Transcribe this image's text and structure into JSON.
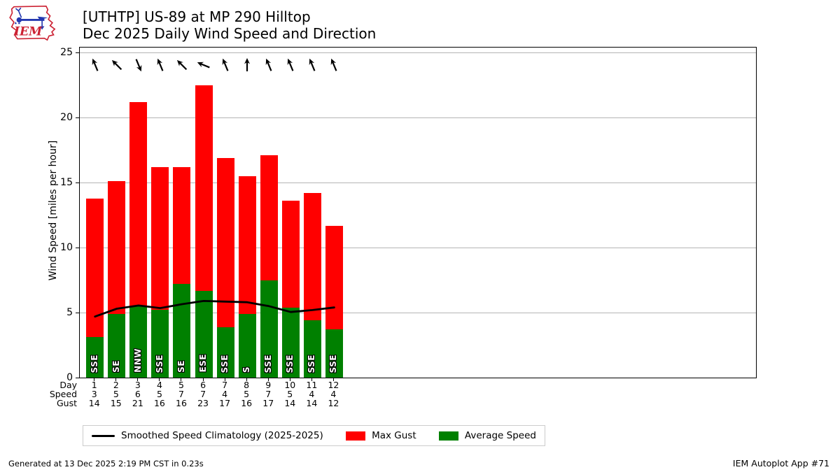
{
  "header": {
    "title_line1": "[UTHTP] US-89 at MP 290 Hilltop",
    "title_line2": "Dec 2025 Daily Wind Speed and Direction",
    "logo_text": "IEM"
  },
  "chart_data": {
    "type": "bar",
    "title": "[UTHTP] US-89 at MP 290 Hilltop — Dec 2025 Daily Wind Speed and Direction",
    "ylabel": "Wind Speed [miles per hour]",
    "ylim": [
      0,
      25.4
    ],
    "yticks": [
      0,
      5,
      10,
      15,
      20,
      25
    ],
    "grid": true,
    "x_axis_day_span": [
      0.3,
      31.4
    ],
    "x_days": [
      1,
      2,
      3,
      4,
      5,
      6,
      7,
      8,
      9,
      10,
      11,
      12
    ],
    "series": [
      {
        "name": "Max Gust",
        "type": "bar",
        "color": "#ff0000",
        "values": [
          13.8,
          15.1,
          21.2,
          16.2,
          16.2,
          22.5,
          16.9,
          15.5,
          17.1,
          13.6,
          14.2,
          11.7
        ]
      },
      {
        "name": "Average Speed",
        "type": "bar",
        "color": "#008000",
        "values": [
          3.1,
          4.9,
          5.5,
          5.2,
          7.2,
          6.7,
          3.9,
          4.9,
          7.5,
          5.4,
          4.4,
          3.7
        ]
      },
      {
        "name": "Smoothed Speed Climatology (2025-2025)",
        "type": "line",
        "color": "#000000",
        "values": [
          4.7,
          5.3,
          5.55,
          5.35,
          5.65,
          5.9,
          5.85,
          5.8,
          5.5,
          5.05,
          5.2,
          5.4
        ]
      }
    ],
    "wind_directions": [
      "SSE",
      "SE",
      "NNW",
      "SSE",
      "SE",
      "ESE",
      "SSE",
      "S",
      "SSE",
      "SSE",
      "SSE",
      "SSE"
    ],
    "table": {
      "row_labels": [
        "Day",
        "Speed",
        "Gust"
      ],
      "Day": [
        1,
        2,
        3,
        4,
        5,
        6,
        7,
        8,
        9,
        10,
        11,
        12
      ],
      "Speed": [
        3,
        5,
        6,
        5,
        7,
        7,
        4,
        5,
        7,
        5,
        4,
        4
      ],
      "Gust": [
        14,
        15,
        21,
        16,
        16,
        23,
        17,
        16,
        17,
        14,
        14,
        12
      ]
    },
    "legend_position": "bottom"
  },
  "legend": {
    "items": [
      {
        "label": "Smoothed Speed Climatology (2025-2025)",
        "swatch": "line",
        "color": "#000000"
      },
      {
        "label": "Max Gust",
        "swatch": "rect",
        "color": "#ff0000"
      },
      {
        "label": "Average Speed",
        "swatch": "rect",
        "color": "#008000"
      }
    ]
  },
  "colors": {
    "max_gust": "#ff0000",
    "average_speed": "#008000",
    "climatology_line": "#000000",
    "grid": "#b5b5b5",
    "logo_red": "#cc2233",
    "logo_blue": "#2438b0"
  },
  "footer": {
    "left": "Generated at 13 Dec 2025 2:19 PM CST in 0.23s",
    "right": "IEM Autoplot App #71"
  }
}
